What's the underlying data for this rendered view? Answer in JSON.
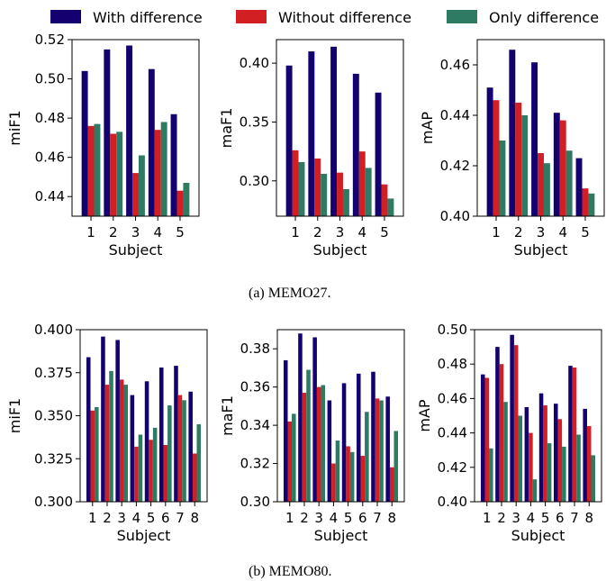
{
  "legend": {
    "entries": [
      {
        "label": "With difference",
        "color": "#14006e"
      },
      {
        "label": "Without difference",
        "color": "#d11f24"
      },
      {
        "label": "Only difference",
        "color": "#2f7a62"
      }
    ]
  },
  "captions": [
    "(a)  MEMO27.",
    "(b)  MEMO80."
  ],
  "chart_data": [
    {
      "type": "bar",
      "group": "MEMO27",
      "xlabel": "Subject",
      "ylabel": "miF1",
      "categories": [
        "1",
        "2",
        "3",
        "4",
        "5"
      ],
      "ylim": [
        0.43,
        0.52
      ],
      "yticks": [
        0.44,
        0.46,
        0.48,
        0.5,
        0.52
      ],
      "ytick_labels": [
        "0.44",
        "0.46",
        "0.48",
        "0.50",
        "0.52"
      ],
      "series": [
        {
          "name": "With difference",
          "values": [
            0.504,
            0.515,
            0.517,
            0.505,
            0.482
          ]
        },
        {
          "name": "Without difference",
          "values": [
            0.476,
            0.472,
            0.452,
            0.474,
            0.443
          ]
        },
        {
          "name": "Only difference",
          "values": [
            0.477,
            0.473,
            0.461,
            0.478,
            0.447
          ]
        }
      ]
    },
    {
      "type": "bar",
      "group": "MEMO27",
      "xlabel": "Subject",
      "ylabel": "maF1",
      "categories": [
        "1",
        "2",
        "3",
        "4",
        "5"
      ],
      "ylim": [
        0.27,
        0.42
      ],
      "yticks": [
        0.3,
        0.35,
        0.4
      ],
      "ytick_labels": [
        "0.30",
        "0.35",
        "0.40"
      ],
      "series": [
        {
          "name": "With difference",
          "values": [
            0.398,
            0.41,
            0.414,
            0.391,
            0.375
          ]
        },
        {
          "name": "Without difference",
          "values": [
            0.326,
            0.319,
            0.307,
            0.325,
            0.297
          ]
        },
        {
          "name": "Only difference",
          "values": [
            0.316,
            0.306,
            0.293,
            0.311,
            0.285
          ]
        }
      ]
    },
    {
      "type": "bar",
      "group": "MEMO27",
      "xlabel": "Subject",
      "ylabel": "mAP",
      "categories": [
        "1",
        "2",
        "3",
        "4",
        "5"
      ],
      "ylim": [
        0.4,
        0.47
      ],
      "yticks": [
        0.4,
        0.42,
        0.44,
        0.46
      ],
      "ytick_labels": [
        "0.40",
        "0.42",
        "0.44",
        "0.46"
      ],
      "series": [
        {
          "name": "With difference",
          "values": [
            0.451,
            0.466,
            0.461,
            0.441,
            0.423
          ]
        },
        {
          "name": "Without difference",
          "values": [
            0.446,
            0.445,
            0.425,
            0.438,
            0.411
          ]
        },
        {
          "name": "Only difference",
          "values": [
            0.43,
            0.44,
            0.421,
            0.426,
            0.409
          ]
        }
      ]
    },
    {
      "type": "bar",
      "group": "MEMO80",
      "xlabel": "Subject",
      "ylabel": "miF1",
      "categories": [
        "1",
        "2",
        "3",
        "4",
        "5",
        "6",
        "7",
        "8"
      ],
      "ylim": [
        0.3,
        0.4
      ],
      "yticks": [
        0.3,
        0.325,
        0.35,
        0.375,
        0.4
      ],
      "ytick_labels": [
        "0.300",
        "0.325",
        "0.350",
        "0.375",
        "0.400"
      ],
      "series": [
        {
          "name": "With difference",
          "values": [
            0.384,
            0.396,
            0.394,
            0.362,
            0.37,
            0.378,
            0.379,
            0.364
          ]
        },
        {
          "name": "Without difference",
          "values": [
            0.353,
            0.368,
            0.371,
            0.332,
            0.336,
            0.333,
            0.362,
            0.328
          ]
        },
        {
          "name": "Only difference",
          "values": [
            0.355,
            0.376,
            0.368,
            0.339,
            0.343,
            0.356,
            0.359,
            0.345
          ]
        }
      ]
    },
    {
      "type": "bar",
      "group": "MEMO80",
      "xlabel": "Subject",
      "ylabel": "maF1",
      "categories": [
        "1",
        "2",
        "3",
        "4",
        "5",
        "6",
        "7",
        "8"
      ],
      "ylim": [
        0.3,
        0.39
      ],
      "yticks": [
        0.3,
        0.32,
        0.34,
        0.36,
        0.38
      ],
      "ytick_labels": [
        "0.30",
        "0.32",
        "0.34",
        "0.36",
        "0.38"
      ],
      "series": [
        {
          "name": "With difference",
          "values": [
            0.374,
            0.388,
            0.386,
            0.353,
            0.362,
            0.367,
            0.368,
            0.355
          ]
        },
        {
          "name": "Without difference",
          "values": [
            0.342,
            0.357,
            0.36,
            0.32,
            0.329,
            0.324,
            0.354,
            0.318
          ]
        },
        {
          "name": "Only difference",
          "values": [
            0.346,
            0.369,
            0.361,
            0.332,
            0.326,
            0.347,
            0.353,
            0.337
          ]
        }
      ]
    },
    {
      "type": "bar",
      "group": "MEMO80",
      "xlabel": "Subject",
      "ylabel": "mAP",
      "categories": [
        "1",
        "2",
        "3",
        "4",
        "5",
        "6",
        "7",
        "8"
      ],
      "ylim": [
        0.4,
        0.5
      ],
      "yticks": [
        0.4,
        0.42,
        0.44,
        0.46,
        0.48,
        0.5
      ],
      "ytick_labels": [
        "0.40",
        "0.42",
        "0.44",
        "0.46",
        "0.48",
        "0.50"
      ],
      "series": [
        {
          "name": "With difference",
          "values": [
            0.474,
            0.49,
            0.497,
            0.455,
            0.463,
            0.457,
            0.479,
            0.454
          ]
        },
        {
          "name": "Without difference",
          "values": [
            0.472,
            0.48,
            0.491,
            0.44,
            0.456,
            0.448,
            0.478,
            0.444
          ]
        },
        {
          "name": "Only difference",
          "values": [
            0.431,
            0.458,
            0.45,
            0.413,
            0.434,
            0.432,
            0.439,
            0.427
          ]
        }
      ]
    }
  ]
}
